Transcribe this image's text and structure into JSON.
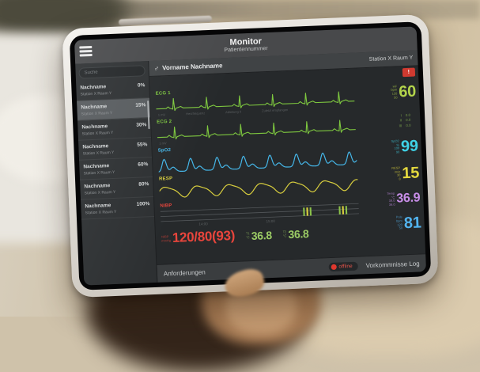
{
  "app": {
    "title": "Monitor",
    "subtitle": "Patientennummer"
  },
  "patient_header": {
    "gender_symbol": "♂",
    "name": "Vorname Nachname",
    "location": "Station X Raum Y"
  },
  "sidebar": {
    "search_placeholder": "Suche",
    "patients": [
      {
        "name": "Nachname",
        "location": "Station X Raum Y",
        "percent": "0%",
        "selected": false
      },
      {
        "name": "Nachname",
        "location": "Station X Raum Y",
        "percent": "15%",
        "selected": true
      },
      {
        "name": "Nachname",
        "location": "Station X Raum Y",
        "percent": "30%",
        "selected": false
      },
      {
        "name": "Nachname",
        "location": "Station X Raum Y",
        "percent": "55%",
        "selected": false
      },
      {
        "name": "Nachname",
        "location": "Station X Raum Y",
        "percent": "60%",
        "selected": false
      },
      {
        "name": "Nachname",
        "location": "Station X Raum Y",
        "percent": "80%",
        "selected": false
      },
      {
        "name": "Nachname",
        "location": "Station X Raum Y",
        "percent": "100%",
        "selected": false
      }
    ]
  },
  "waveforms": [
    {
      "label": "ECG 1",
      "color": "#7ec83f",
      "type": "ecg",
      "annotations": [
        "1 mV",
        "Herzfrequenz",
        "Ableitung II",
        "Zuletzt empfangen"
      ]
    },
    {
      "label": "ECG 2",
      "color": "#7ec83f",
      "type": "ecg",
      "annotations": [
        "1 mV"
      ]
    },
    {
      "label": "SpO2",
      "color": "#45b6e8",
      "type": "pleth"
    },
    {
      "label": "RESP",
      "color": "#d8ce3e",
      "type": "resp"
    },
    {
      "label": "NIBP",
      "color": "#e8453c",
      "type": "trend",
      "axis_labels": [
        "14:00",
        "15:00"
      ],
      "marker_colors": [
        "#8bc34a",
        "#ded33e",
        "#8bc34a"
      ]
    }
  ],
  "vitals": {
    "hr": {
      "label": "HF",
      "unit": "bpm",
      "value": "60",
      "color": "#b3d44b",
      "limit_high": "120",
      "limit_low": "50"
    },
    "st": {
      "rows": [
        {
          "lead": "I",
          "value": "0.0"
        },
        {
          "lead": "II",
          "value": "0.0"
        },
        {
          "lead": "III",
          "value": "0.0"
        }
      ]
    },
    "spo2": {
      "label": "SpO2",
      "unit": "%",
      "value": "99",
      "color": "#3fd2e6",
      "limit_high": "100",
      "limit_low": "90"
    },
    "resp": {
      "label": "RESP",
      "unit": "/min",
      "value": "15",
      "color": "#e3d83e",
      "limit_high": "30",
      "limit_low": "8"
    },
    "temp": {
      "label": "Temp",
      "unit": "°C",
      "value": "36.9",
      "color": "#c88ee8",
      "limit_high": "39.0",
      "limit_low": "36.0"
    },
    "puls": {
      "label": "Puls",
      "unit": "bpm",
      "value": "81",
      "color": "#52b4ef",
      "limit_high": "120",
      "limit_low": "50"
    }
  },
  "bottom_values": {
    "nibp": {
      "label": "NIBP",
      "unit": "mmHg",
      "value": "120/80(93)",
      "color": "#e8453c"
    },
    "t1": {
      "label": "T1",
      "unit": "°C",
      "value": "36.8",
      "color": "#9ccc65"
    },
    "t2": {
      "label": "T2",
      "unit": "°C",
      "value": "36.8",
      "color": "#9ccc65"
    }
  },
  "footer": {
    "requests": "Anforderungen",
    "status": "offline",
    "log": "Vorkommnisse Log"
  }
}
